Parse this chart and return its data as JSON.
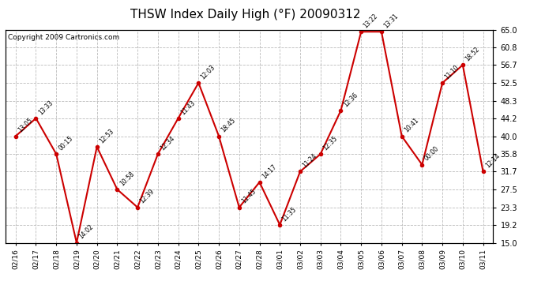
{
  "title": "THSW Index Daily High (°F) 20090312",
  "copyright": "Copyright 2009 Cartronics.com",
  "dates": [
    "02/16",
    "02/17",
    "02/18",
    "02/19",
    "02/20",
    "02/21",
    "02/22",
    "02/23",
    "02/24",
    "02/25",
    "02/26",
    "02/27",
    "02/28",
    "03/01",
    "03/02",
    "03/03",
    "03/04",
    "03/05",
    "03/06",
    "03/07",
    "03/08",
    "03/09",
    "03/10",
    "03/11"
  ],
  "values": [
    40.0,
    44.2,
    35.8,
    15.0,
    37.5,
    27.5,
    23.3,
    35.8,
    44.2,
    52.5,
    40.0,
    23.3,
    29.2,
    19.2,
    31.7,
    35.8,
    46.0,
    64.5,
    64.5,
    40.0,
    33.3,
    52.5,
    56.7,
    31.7
  ],
  "times": [
    "13:05",
    "13:33",
    "00:15",
    "14:02",
    "12:53",
    "10:58",
    "12:39",
    "12:34",
    "11:43",
    "12:03",
    "18:45",
    "11:45",
    "14:17",
    "11:35",
    "11:24",
    "12:35",
    "12:36",
    "13:22",
    "13:31",
    "10:41",
    "00:00",
    "11:10",
    "18:52",
    "12:14"
  ],
  "line_color": "#cc0000",
  "marker_color": "#cc0000",
  "bg_color": "#ffffff",
  "grid_color": "#bbbbbb",
  "ylim_min": 15.0,
  "ylim_max": 65.0,
  "yticks": [
    15.0,
    19.2,
    23.3,
    27.5,
    31.7,
    35.8,
    40.0,
    44.2,
    48.3,
    52.5,
    56.7,
    60.8,
    65.0
  ],
  "title_fontsize": 11,
  "annotation_fontsize": 5.5,
  "copyright_fontsize": 6.5,
  "tick_fontsize": 7,
  "xtick_fontsize": 6.5
}
